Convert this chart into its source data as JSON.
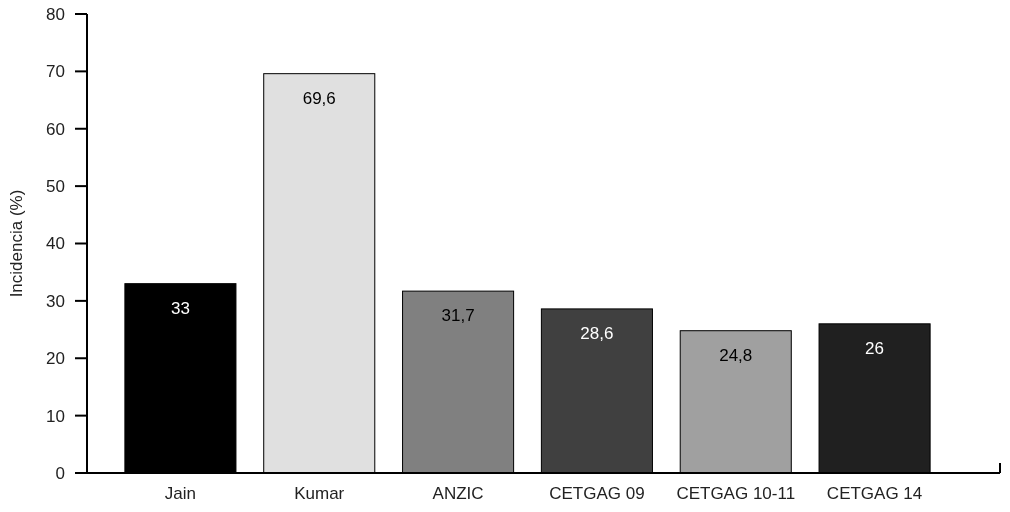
{
  "chart_data": {
    "type": "bar",
    "ylabel": "Incidencia (%)",
    "categories": [
      "Jain",
      "Kumar",
      "ANZIC",
      "CETGAG 09",
      "CETGAG 10-11",
      "CETGAG 14"
    ],
    "values": [
      33,
      69.6,
      31.7,
      28.6,
      24.8,
      26
    ],
    "colors": [
      "#000000",
      "#e0e0e0",
      "#808080",
      "#404040",
      "#a0a0a0",
      "#202020"
    ],
    "value_labels": [
      "33",
      "69,6",
      "31,7",
      "28,6",
      "24,8",
      "26"
    ],
    "ylim": [
      0,
      80
    ],
    "yticks": [
      0,
      10,
      20,
      30,
      40,
      50,
      60,
      70,
      80
    ],
    "grid": false
  }
}
